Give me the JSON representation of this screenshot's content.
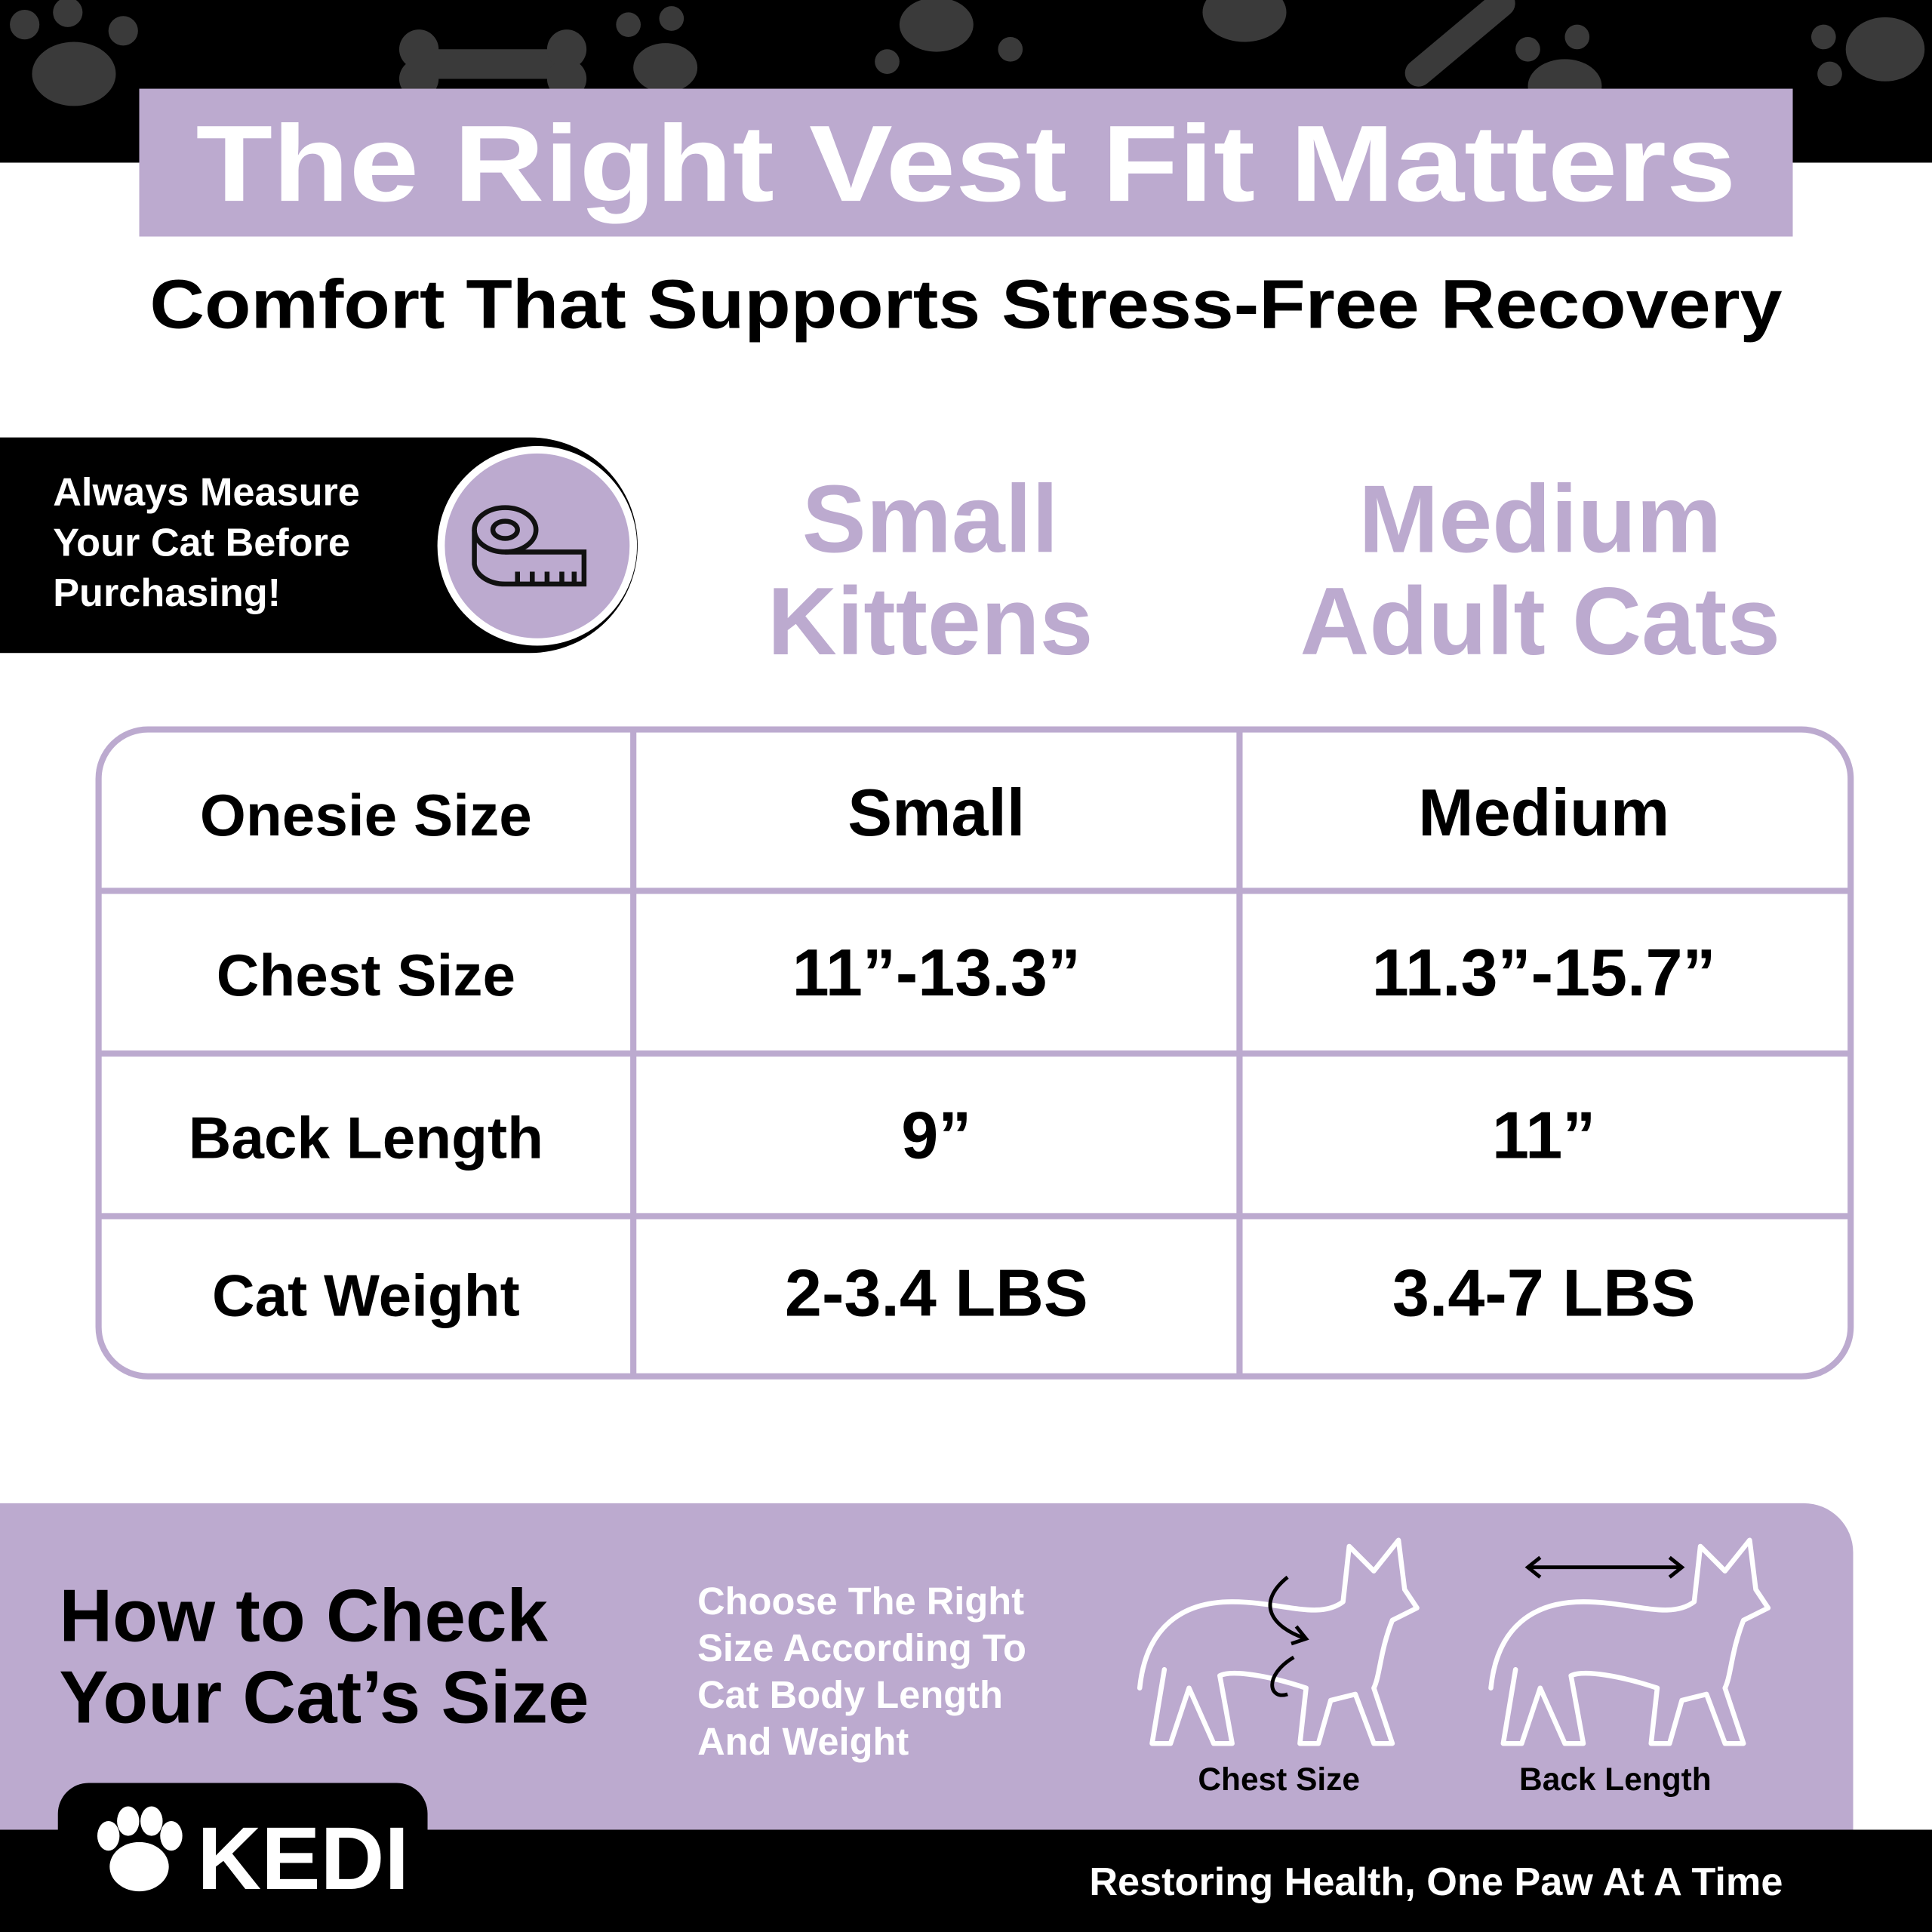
{
  "header": {
    "title": "The Right Vest Fit Matters",
    "subtitle": "Comfort That Supports Stress-Free Recovery"
  },
  "measure_note": {
    "emphasis": "Always",
    "lines": [
      "Measure",
      "Your Cat Before",
      "Purchasing!"
    ]
  },
  "size_headings": [
    {
      "lines": [
        "Small",
        "Kittens"
      ]
    },
    {
      "lines": [
        "Medium",
        "Adult Cats"
      ]
    }
  ],
  "table": {
    "rows": [
      [
        "Onesie Size",
        "Small",
        "Medium"
      ],
      [
        "Chest Size",
        "11”-13.3”",
        "11.3”-15.7”"
      ],
      [
        "Back Length",
        "9”",
        "11”"
      ],
      [
        "Cat Weight",
        "2-3.4 LBS",
        "3.4-7 LBS"
      ]
    ]
  },
  "how_to": {
    "title_lines": [
      "How to Check",
      "Your Cat’s Size"
    ],
    "description_lines": [
      "Choose The Right",
      "Size According To",
      "Cat Body Length",
      "And Weight"
    ],
    "diagrams": [
      "Chest Size",
      "Back Length"
    ]
  },
  "footer": {
    "brand": "KEDI",
    "tagline": "Restoring Health, One Paw At A Time"
  }
}
